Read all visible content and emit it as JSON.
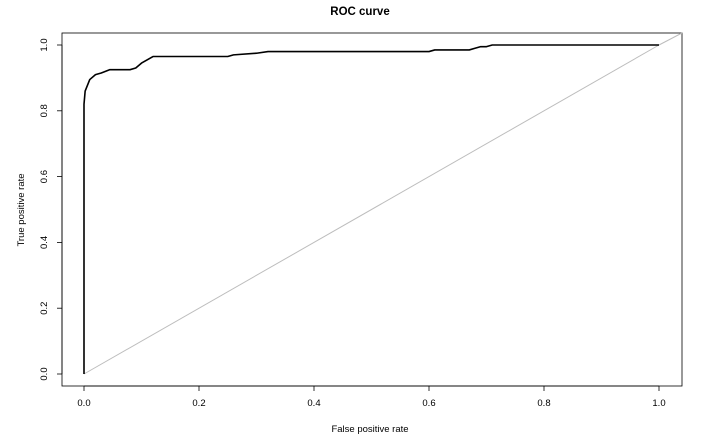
{
  "chart_data": {
    "type": "line",
    "title": "ROC curve",
    "xlabel": "False positive rate",
    "ylabel": "True positive rate",
    "xlim": [
      0.0,
      1.0
    ],
    "ylim": [
      0.0,
      1.0
    ],
    "x_ticks": [
      "0.0",
      "0.2",
      "0.4",
      "0.6",
      "0.8",
      "1.0"
    ],
    "y_ticks": [
      "0.0",
      "0.2",
      "0.4",
      "0.6",
      "0.8",
      "1.0"
    ],
    "grid": false,
    "series": [
      {
        "color": "#000000",
        "x": [
          0.0,
          0.0,
          0.002,
          0.01,
          0.02,
          0.03,
          0.045,
          0.06,
          0.08,
          0.09,
          0.1,
          0.11,
          0.12,
          0.16,
          0.2,
          0.25,
          0.26,
          0.3,
          0.32,
          0.4,
          0.5,
          0.6,
          0.61,
          0.67,
          0.68,
          0.69,
          0.7,
          0.71,
          0.8,
          0.9,
          1.0
        ],
        "y": [
          0.0,
          0.82,
          0.86,
          0.895,
          0.91,
          0.915,
          0.925,
          0.925,
          0.925,
          0.93,
          0.945,
          0.955,
          0.965,
          0.965,
          0.965,
          0.965,
          0.97,
          0.975,
          0.98,
          0.98,
          0.98,
          0.98,
          0.985,
          0.985,
          0.99,
          0.995,
          0.995,
          1.0,
          1.0,
          1.0,
          1.0
        ]
      }
    ],
    "reference_line": {
      "x": [
        0.0,
        1.0
      ],
      "y": [
        0.0,
        1.0
      ],
      "color": "#bdbdbd"
    }
  }
}
